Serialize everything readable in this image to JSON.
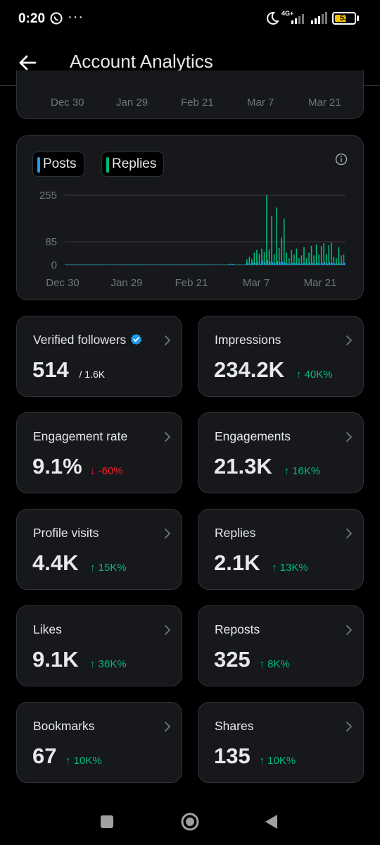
{
  "status_bar": {
    "time": "0:20",
    "icons": [
      "whatsapp-icon",
      "more-dots-icon",
      "moon-icon",
      "4g-signal-icon",
      "signal-icon",
      "battery-icon"
    ],
    "network": "4G+",
    "battery": "53",
    "battery_level_percent": 53
  },
  "header": {
    "title": "Account Analytics"
  },
  "top_chart_axis": [
    "Dec 30",
    "Jan 29",
    "Feb 21",
    "Mar 7",
    "Mar 21"
  ],
  "activity_chart": {
    "legend": [
      {
        "label": "Posts",
        "color": "#1d9bf0"
      },
      {
        "label": "Replies",
        "color": "#00ba7c"
      }
    ],
    "y_ticks": [
      "255",
      "85",
      "0"
    ],
    "x_ticks": [
      "Dec 30",
      "Jan 29",
      "Feb 21",
      "Mar 7",
      "Mar 21"
    ]
  },
  "chart_data": {
    "type": "bar",
    "ylim": [
      0,
      255
    ],
    "y_ticks": [
      0,
      85,
      255
    ],
    "x_ticks": [
      "Dec 30",
      "Jan 29",
      "Feb 21",
      "Mar 7",
      "Mar 21"
    ],
    "series": [
      {
        "name": "Replies",
        "color": "#00ba7c",
        "values": [
          0,
          0,
          0,
          0,
          0,
          0,
          0,
          0,
          0,
          0,
          0,
          0,
          0,
          0,
          0,
          0,
          0,
          0,
          0,
          0,
          0,
          0,
          0,
          0,
          0,
          0,
          0,
          0,
          0,
          0,
          0,
          0,
          0,
          0,
          0,
          0,
          0,
          0,
          0,
          0,
          0,
          0,
          0,
          0,
          0,
          0,
          0,
          0,
          0,
          0,
          0,
          0,
          0,
          0,
          0,
          0,
          0,
          0,
          0,
          0,
          0,
          0,
          0,
          0,
          0,
          0,
          4,
          5,
          0,
          0,
          0,
          0,
          0,
          20,
          30,
          22,
          45,
          55,
          40,
          60,
          48,
          255,
          58,
          180,
          40,
          210,
          62,
          100,
          170,
          45,
          25,
          55,
          38,
          60,
          25,
          35,
          65,
          25,
          45,
          70,
          35,
          75,
          38,
          70,
          80,
          40,
          72,
          82,
          30,
          25,
          65,
          35,
          38
        ]
      },
      {
        "name": "Posts",
        "color": "#1d9bf0",
        "values": [
          0,
          0,
          0,
          0,
          0,
          0,
          0,
          0,
          0,
          0,
          0,
          0,
          0,
          0,
          0,
          0,
          0,
          0,
          0,
          0,
          0,
          0,
          0,
          0,
          0,
          0,
          0,
          0,
          0,
          0,
          0,
          0,
          0,
          0,
          0,
          0,
          0,
          0,
          0,
          0,
          0,
          0,
          0,
          0,
          0,
          0,
          0,
          0,
          0,
          0,
          0,
          0,
          0,
          0,
          0,
          0,
          0,
          0,
          0,
          0,
          0,
          0,
          0,
          0,
          0,
          0,
          2,
          3,
          0,
          0,
          0,
          0,
          0,
          8,
          5,
          10,
          8,
          12,
          6,
          15,
          9,
          18,
          12,
          10,
          8,
          15,
          10,
          12,
          9,
          6,
          5,
          8,
          7,
          6,
          5,
          6,
          8,
          5,
          7,
          9,
          5,
          8,
          6,
          7,
          10,
          5,
          9,
          8,
          6,
          5,
          7,
          6,
          8
        ]
      }
    ]
  },
  "metrics": [
    {
      "label": "Verified followers",
      "value": "514",
      "suffix": "/ 1.6K",
      "verified": true
    },
    {
      "label": "Impressions",
      "value": "234.2K",
      "delta": "↑ 40K%",
      "trend": "up"
    },
    {
      "label": "Engagement rate",
      "value": "9.1%",
      "delta": "↓ -60%",
      "trend": "down"
    },
    {
      "label": "Engagements",
      "value": "21.3K",
      "delta": "↑ 16K%",
      "trend": "up"
    },
    {
      "label": "Profile visits",
      "value": "4.4K",
      "delta": "↑ 15K%",
      "trend": "up"
    },
    {
      "label": "Replies",
      "value": "2.1K",
      "delta": "↑ 13K%",
      "trend": "up"
    },
    {
      "label": "Likes",
      "value": "9.1K",
      "delta": "↑ 36K%",
      "trend": "up"
    },
    {
      "label": "Reposts",
      "value": "325",
      "delta": "↑ 8K%",
      "trend": "up"
    },
    {
      "label": "Bookmarks",
      "value": "67",
      "delta": "↑ 10K%",
      "trend": "up"
    },
    {
      "label": "Shares",
      "value": "135",
      "delta": "↑ 10K%",
      "trend": "up"
    }
  ]
}
